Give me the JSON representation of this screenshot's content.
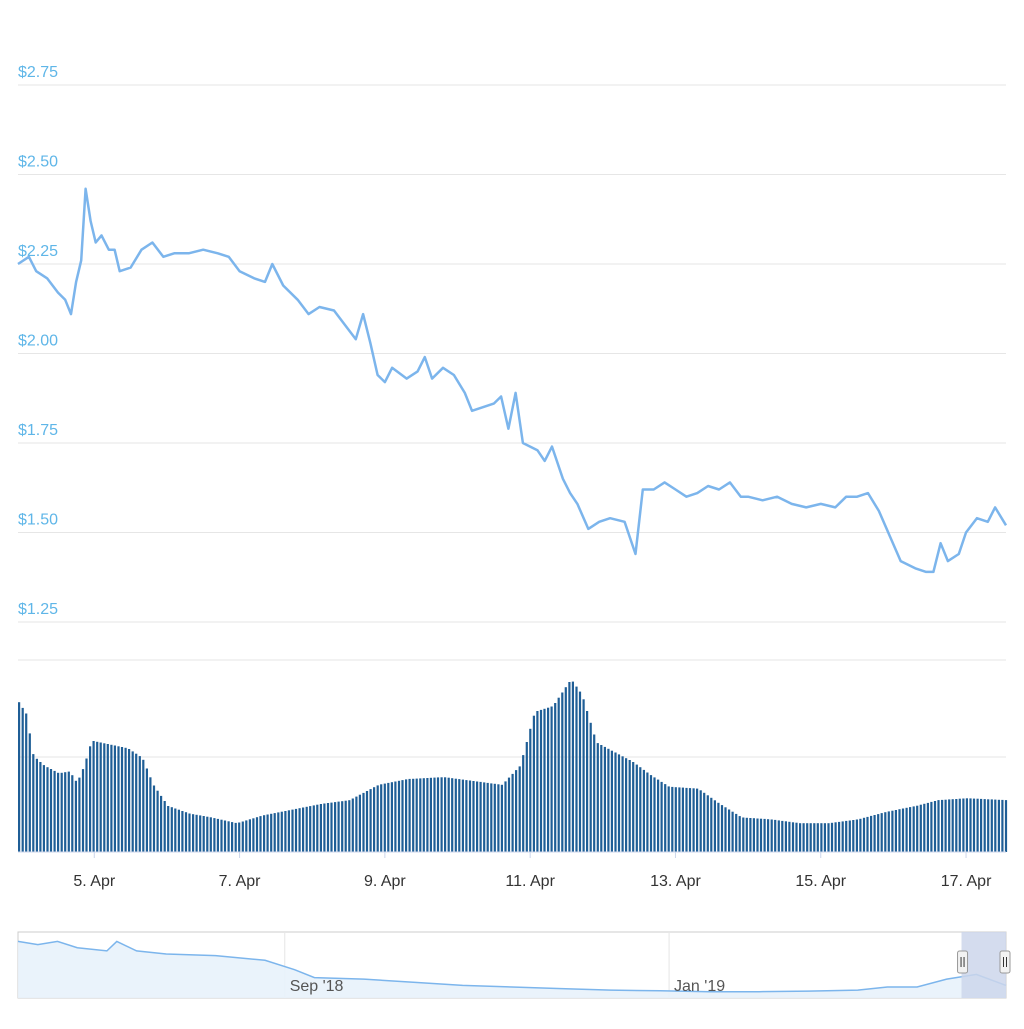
{
  "colors": {
    "price_line": "#7cb5ec",
    "price_axis_label": "#5fb6e8",
    "volume_bar": "#1f5e96",
    "grid": "#e6e6e6",
    "axis_text": "#333333",
    "navigator_mask": "#ccd6eb",
    "navigator_fill": "#e8f2fb"
  },
  "chart_data": [
    {
      "type": "line",
      "name": "price",
      "ylim": [
        1.25,
        2.75
      ],
      "ytick_labels": [
        "$1.25",
        "$1.50",
        "$1.75",
        "$2.00",
        "$2.25",
        "$2.50",
        "$2.75"
      ],
      "ytick_values": [
        1.25,
        1.5,
        1.75,
        2.0,
        2.25,
        2.5,
        2.75
      ],
      "x_labels": [
        "5. Apr",
        "7. Apr",
        "9. Apr",
        "11. Apr",
        "13. Apr",
        "15. Apr",
        "17. Apr"
      ],
      "x_label_days": [
        5,
        7,
        9,
        11,
        13,
        15,
        17
      ],
      "xlim_days": [
        3.95,
        17.55
      ],
      "points": [
        [
          3.95,
          2.25
        ],
        [
          4.1,
          2.27
        ],
        [
          4.2,
          2.23
        ],
        [
          4.35,
          2.21
        ],
        [
          4.5,
          2.17
        ],
        [
          4.6,
          2.15
        ],
        [
          4.68,
          2.11
        ],
        [
          4.75,
          2.2
        ],
        [
          4.82,
          2.26
        ],
        [
          4.88,
          2.46
        ],
        [
          4.95,
          2.37
        ],
        [
          5.02,
          2.31
        ],
        [
          5.1,
          2.33
        ],
        [
          5.2,
          2.29
        ],
        [
          5.28,
          2.29
        ],
        [
          5.35,
          2.23
        ],
        [
          5.5,
          2.24
        ],
        [
          5.65,
          2.29
        ],
        [
          5.8,
          2.31
        ],
        [
          5.95,
          2.27
        ],
        [
          6.1,
          2.28
        ],
        [
          6.3,
          2.28
        ],
        [
          6.5,
          2.29
        ],
        [
          6.7,
          2.28
        ],
        [
          6.85,
          2.27
        ],
        [
          7.0,
          2.23
        ],
        [
          7.2,
          2.21
        ],
        [
          7.35,
          2.2
        ],
        [
          7.45,
          2.25
        ],
        [
          7.6,
          2.19
        ],
        [
          7.8,
          2.15
        ],
        [
          7.95,
          2.11
        ],
        [
          8.1,
          2.13
        ],
        [
          8.3,
          2.12
        ],
        [
          8.45,
          2.08
        ],
        [
          8.6,
          2.04
        ],
        [
          8.7,
          2.11
        ],
        [
          8.8,
          2.03
        ],
        [
          8.9,
          1.94
        ],
        [
          9.0,
          1.92
        ],
        [
          9.1,
          1.96
        ],
        [
          9.3,
          1.93
        ],
        [
          9.45,
          1.95
        ],
        [
          9.55,
          1.99
        ],
        [
          9.65,
          1.93
        ],
        [
          9.8,
          1.96
        ],
        [
          9.95,
          1.94
        ],
        [
          10.1,
          1.89
        ],
        [
          10.2,
          1.84
        ],
        [
          10.35,
          1.85
        ],
        [
          10.5,
          1.86
        ],
        [
          10.6,
          1.88
        ],
        [
          10.7,
          1.79
        ],
        [
          10.8,
          1.89
        ],
        [
          10.9,
          1.75
        ],
        [
          11.1,
          1.73
        ],
        [
          11.2,
          1.7
        ],
        [
          11.3,
          1.74
        ],
        [
          11.45,
          1.65
        ],
        [
          11.55,
          1.61
        ],
        [
          11.65,
          1.58
        ],
        [
          11.8,
          1.51
        ],
        [
          11.95,
          1.53
        ],
        [
          12.1,
          1.54
        ],
        [
          12.3,
          1.53
        ],
        [
          12.45,
          1.44
        ],
        [
          12.55,
          1.62
        ],
        [
          12.7,
          1.62
        ],
        [
          12.85,
          1.64
        ],
        [
          13.0,
          1.62
        ],
        [
          13.15,
          1.6
        ],
        [
          13.3,
          1.61
        ],
        [
          13.45,
          1.63
        ],
        [
          13.6,
          1.62
        ],
        [
          13.75,
          1.64
        ],
        [
          13.9,
          1.6
        ],
        [
          14.0,
          1.6
        ],
        [
          14.2,
          1.59
        ],
        [
          14.4,
          1.6
        ],
        [
          14.6,
          1.58
        ],
        [
          14.8,
          1.57
        ],
        [
          15.0,
          1.58
        ],
        [
          15.2,
          1.57
        ],
        [
          15.35,
          1.6
        ],
        [
          15.5,
          1.6
        ],
        [
          15.65,
          1.61
        ],
        [
          15.8,
          1.56
        ],
        [
          15.95,
          1.49
        ],
        [
          16.1,
          1.42
        ],
        [
          16.3,
          1.4
        ],
        [
          16.45,
          1.39
        ],
        [
          16.55,
          1.39
        ],
        [
          16.65,
          1.47
        ],
        [
          16.75,
          1.42
        ],
        [
          16.9,
          1.44
        ],
        [
          17.0,
          1.5
        ],
        [
          17.15,
          1.54
        ],
        [
          17.3,
          1.53
        ],
        [
          17.4,
          1.57
        ],
        [
          17.55,
          1.52
        ]
      ]
    },
    {
      "type": "bar",
      "name": "volume",
      "ylim": [
        0,
        100
      ],
      "xlim_days": [
        3.95,
        17.55
      ],
      "profile": [
        [
          3.95,
          78
        ],
        [
          4.05,
          72
        ],
        [
          4.15,
          50
        ],
        [
          4.3,
          45
        ],
        [
          4.5,
          41
        ],
        [
          4.65,
          42
        ],
        [
          4.75,
          36
        ],
        [
          4.85,
          45
        ],
        [
          4.95,
          58
        ],
        [
          5.2,
          56
        ],
        [
          5.45,
          54
        ],
        [
          5.65,
          49
        ],
        [
          5.8,
          35
        ],
        [
          6.0,
          24
        ],
        [
          6.3,
          20
        ],
        [
          6.6,
          18
        ],
        [
          6.95,
          15
        ],
        [
          7.3,
          19
        ],
        [
          7.7,
          22
        ],
        [
          8.1,
          25
        ],
        [
          8.5,
          27
        ],
        [
          8.9,
          35
        ],
        [
          9.3,
          38
        ],
        [
          9.8,
          39
        ],
        [
          10.2,
          37
        ],
        [
          10.6,
          35
        ],
        [
          10.85,
          45
        ],
        [
          11.05,
          73
        ],
        [
          11.3,
          76
        ],
        [
          11.55,
          90
        ],
        [
          11.7,
          82
        ],
        [
          11.9,
          57
        ],
        [
          12.1,
          53
        ],
        [
          12.4,
          47
        ],
        [
          12.65,
          40
        ],
        [
          12.9,
          34
        ],
        [
          13.3,
          33
        ],
        [
          13.6,
          25
        ],
        [
          13.9,
          18
        ],
        [
          14.3,
          17
        ],
        [
          14.7,
          15
        ],
        [
          15.1,
          15
        ],
        [
          15.5,
          17
        ],
        [
          15.9,
          21
        ],
        [
          16.3,
          24
        ],
        [
          16.6,
          27
        ],
        [
          17.0,
          28
        ],
        [
          17.55,
          27
        ]
      ]
    },
    {
      "type": "area",
      "name": "navigator",
      "x_labels": [
        "Sep '18",
        "Jan '19"
      ],
      "points": [
        [
          0,
          2.9
        ],
        [
          0.02,
          2.8
        ],
        [
          0.04,
          2.9
        ],
        [
          0.06,
          2.7
        ],
        [
          0.09,
          2.6
        ],
        [
          0.1,
          2.9
        ],
        [
          0.12,
          2.6
        ],
        [
          0.15,
          2.5
        ],
        [
          0.2,
          2.45
        ],
        [
          0.25,
          2.3
        ],
        [
          0.28,
          2.0
        ],
        [
          0.3,
          1.75
        ],
        [
          0.35,
          1.7
        ],
        [
          0.4,
          1.6
        ],
        [
          0.45,
          1.5
        ],
        [
          0.5,
          1.45
        ],
        [
          0.55,
          1.4
        ],
        [
          0.6,
          1.35
        ],
        [
          0.65,
          1.33
        ],
        [
          0.7,
          1.3
        ],
        [
          0.75,
          1.3
        ],
        [
          0.8,
          1.32
        ],
        [
          0.85,
          1.35
        ],
        [
          0.88,
          1.45
        ],
        [
          0.91,
          1.45
        ],
        [
          0.94,
          1.7
        ],
        [
          0.97,
          1.85
        ],
        [
          1.0,
          1.5
        ]
      ],
      "ylim": [
        1.1,
        3.2
      ],
      "selected_range": [
        0.955,
        1.0
      ]
    }
  ]
}
